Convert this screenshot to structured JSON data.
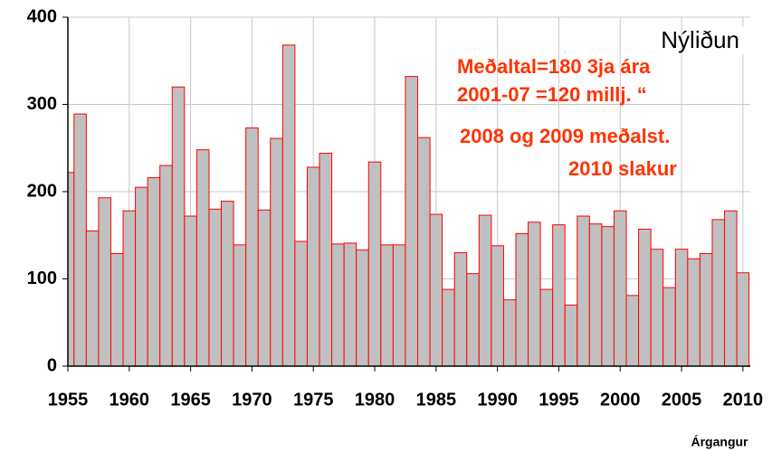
{
  "chart_data": {
    "type": "bar",
    "title": "Nýliðun",
    "annotation": [
      "Meðaltal=180 3ja ára",
      "2001-07 =120 millj.  “",
      "2008 og 2009 meðalst.",
      "2010 slakur"
    ],
    "x_label": "Árgangur",
    "x": [
      1955,
      1956,
      1957,
      1958,
      1959,
      1960,
      1961,
      1962,
      1963,
      1964,
      1965,
      1966,
      1967,
      1968,
      1969,
      1970,
      1971,
      1972,
      1973,
      1974,
      1975,
      1976,
      1977,
      1978,
      1979,
      1980,
      1981,
      1982,
      1983,
      1984,
      1985,
      1986,
      1987,
      1988,
      1989,
      1990,
      1991,
      1992,
      1993,
      1994,
      1995,
      1996,
      1997,
      1998,
      1999,
      2000,
      2001,
      2002,
      2003,
      2004,
      2005,
      2006,
      2007,
      2008,
      2009,
      2010
    ],
    "values": [
      222,
      289,
      155,
      193,
      129,
      178,
      205,
      216,
      230,
      320,
      172,
      248,
      180,
      189,
      139,
      273,
      179,
      261,
      368,
      143,
      228,
      244,
      140,
      141,
      133,
      234,
      139,
      139,
      332,
      262,
      174,
      88,
      130,
      106,
      173,
      138,
      76,
      152,
      165,
      88,
      162,
      70,
      172,
      163,
      160,
      178,
      81,
      157,
      134,
      90,
      134,
      123,
      129,
      168,
      178,
      107
    ],
    "color": "#c0c0c0",
    "edge_color": "#ff0000",
    "xlim": [
      1955,
      2010.6
    ],
    "xticks": [
      1955,
      1960,
      1965,
      1970,
      1975,
      1980,
      1985,
      1990,
      1995,
      2000,
      2005,
      2010
    ],
    "ylim": [
      0,
      400
    ],
    "yticks": [
      0,
      100,
      200,
      300,
      400
    ],
    "grid": true
  }
}
